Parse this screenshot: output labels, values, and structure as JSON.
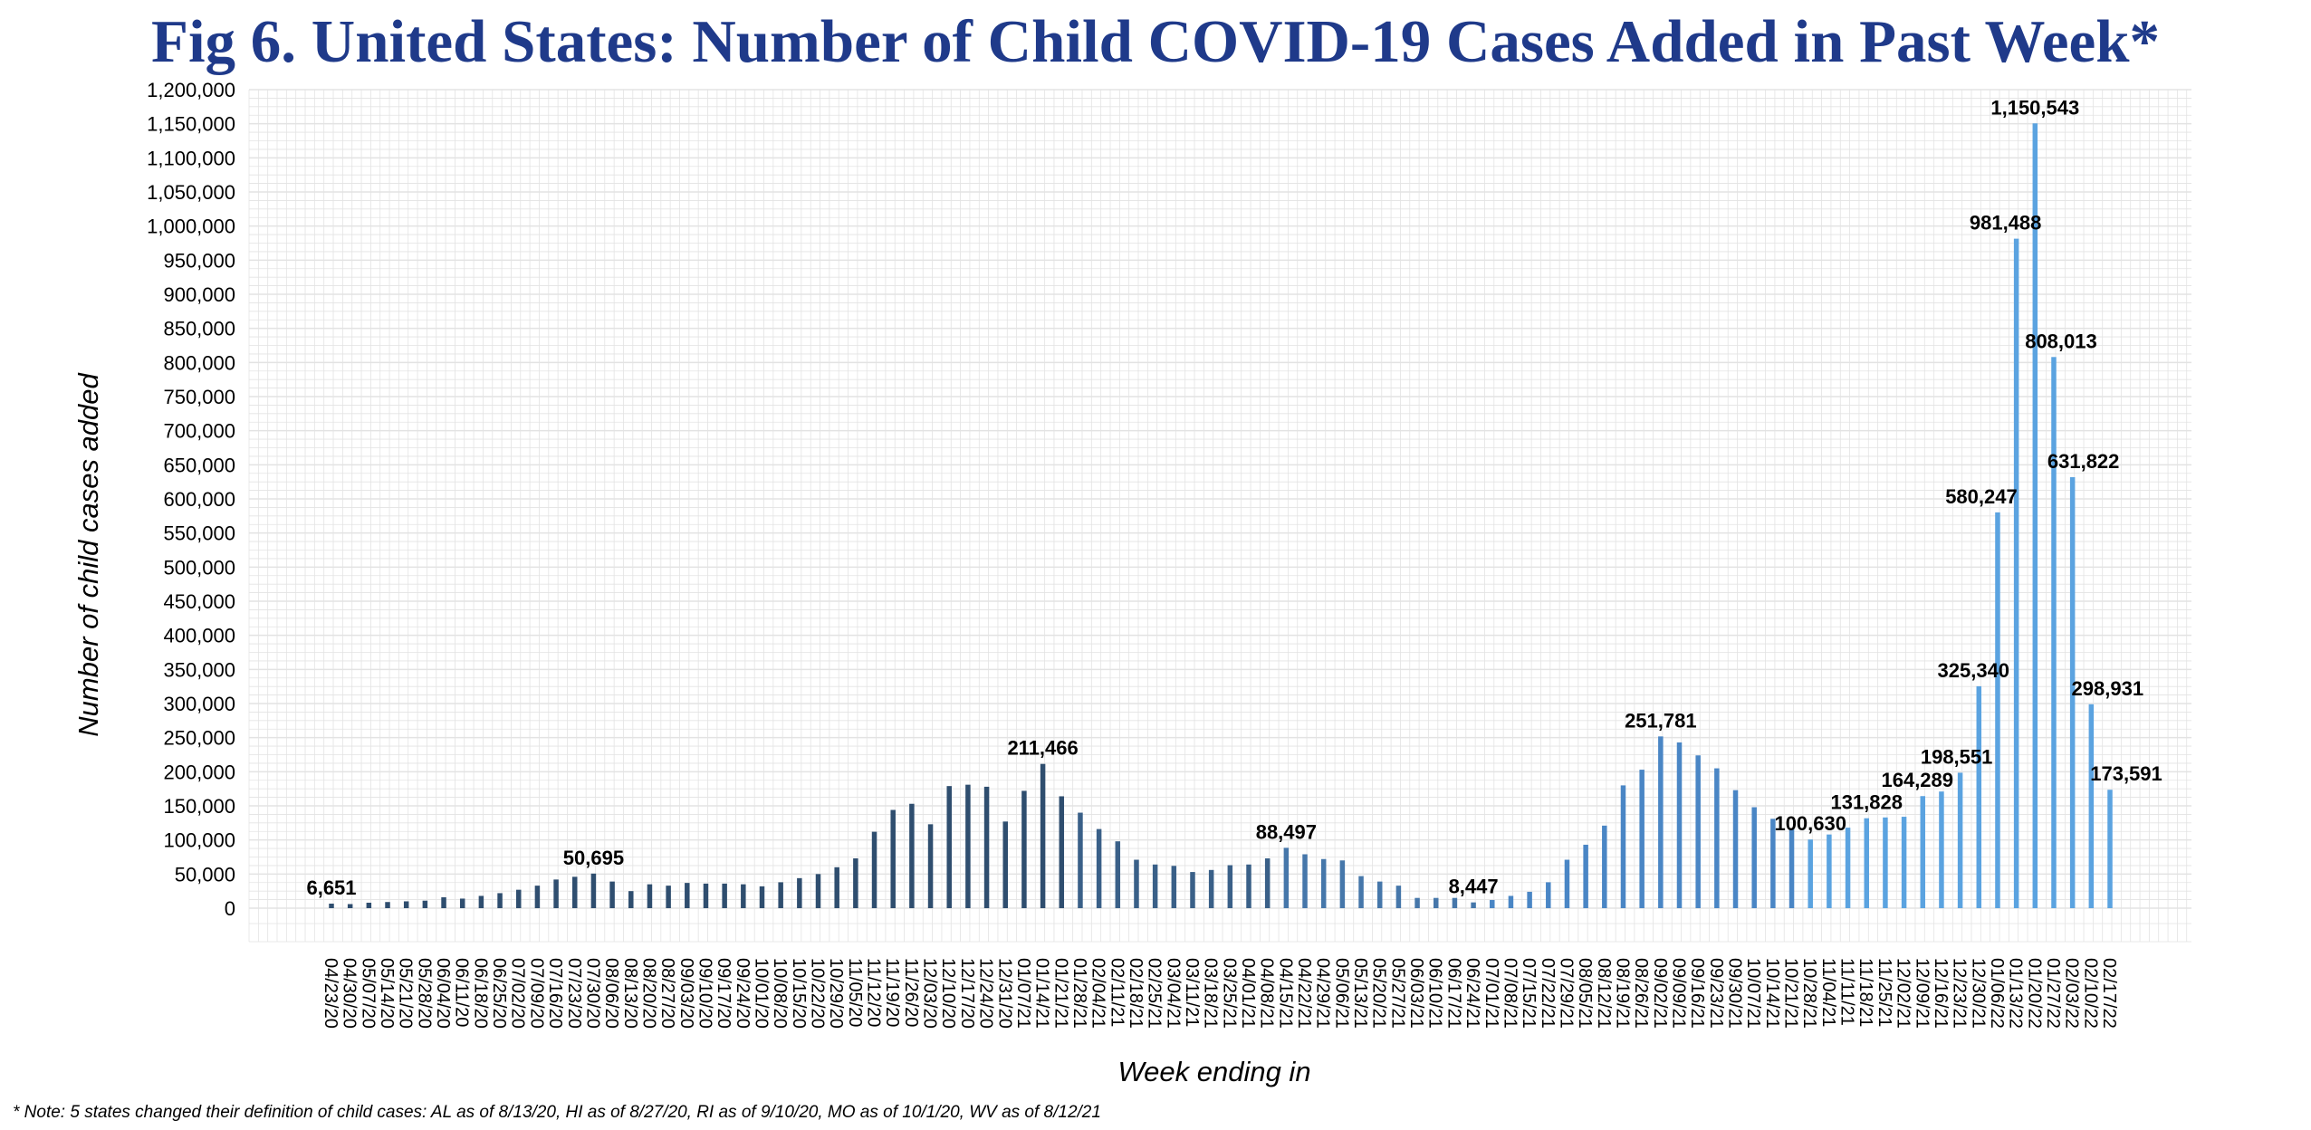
{
  "title": "Fig 6. United States: Number of Child COVID-19 Cases Added in Past Week*",
  "note": "* Note: 5 states changed their definition of child cases: AL as of 8/13/20, HI as of 8/27/20, RI as of 9/10/20, MO as of 10/1/20, WV as of 8/12/21",
  "chart_data": {
    "type": "bar",
    "xlabel": "Week ending in",
    "ylabel": "Number of child cases added",
    "ylim": [
      0,
      1200000
    ],
    "yticks": [
      0,
      50000,
      100000,
      150000,
      200000,
      250000,
      300000,
      350000,
      400000,
      450000,
      500000,
      550000,
      600000,
      650000,
      700000,
      750000,
      800000,
      850000,
      900000,
      950000,
      1000000,
      1050000,
      1100000,
      1150000,
      1200000
    ],
    "ytick_labels": [
      "0",
      "50,000",
      "100,000",
      "150,000",
      "200,000",
      "250,000",
      "300,000",
      "350,000",
      "400,000",
      "450,000",
      "500,000",
      "550,000",
      "600,000",
      "650,000",
      "700,000",
      "750,000",
      "800,000",
      "850,000",
      "900,000",
      "950,000",
      "1,000,000",
      "1,050,000",
      "1,100,000",
      "1,150,000",
      "1,200,000"
    ],
    "grid": true,
    "categories": [
      "04/23/20",
      "04/30/20",
      "05/07/20",
      "05/14/20",
      "05/21/20",
      "05/28/20",
      "06/04/20",
      "06/11/20",
      "06/18/20",
      "06/25/20",
      "07/02/20",
      "07/09/20",
      "07/16/20",
      "07/23/20",
      "07/30/20",
      "08/06/20",
      "08/13/20",
      "08/20/20",
      "08/27/20",
      "09/03/20",
      "09/10/20",
      "09/17/20",
      "09/24/20",
      "10/01/20",
      "10/08/20",
      "10/15/20",
      "10/22/20",
      "10/29/20",
      "11/05/20",
      "11/12/20",
      "11/19/20",
      "11/26/20",
      "12/03/20",
      "12/10/20",
      "12/17/20",
      "12/24/20",
      "12/31/20",
      "01/07/21",
      "01/14/21",
      "01/21/21",
      "01/28/21",
      "02/04/21",
      "02/11/21",
      "02/18/21",
      "02/25/21",
      "03/04/21",
      "03/11/21",
      "03/18/21",
      "03/25/21",
      "04/01/21",
      "04/08/21",
      "04/15/21",
      "04/22/21",
      "04/29/21",
      "05/06/21",
      "05/13/21",
      "05/20/21",
      "05/27/21",
      "06/03/21",
      "06/10/21",
      "06/17/21",
      "06/24/21",
      "07/01/21",
      "07/08/21",
      "07/15/21",
      "07/22/21",
      "07/29/21",
      "08/05/21",
      "08/12/21",
      "08/19/21",
      "08/26/21",
      "09/02/21",
      "09/09/21",
      "09/16/21",
      "09/23/21",
      "09/30/21",
      "10/07/21",
      "10/14/21",
      "10/21/21",
      "10/28/21",
      "11/04/21",
      "11/11/21",
      "11/18/21",
      "11/25/21",
      "12/02/21",
      "12/09/21",
      "12/16/21",
      "12/23/21",
      "12/30/21",
      "01/06/22",
      "01/13/22",
      "01/20/22",
      "01/27/22",
      "02/03/22",
      "02/10/22",
      "02/17/22"
    ],
    "values": [
      6651,
      6000,
      8000,
      9000,
      10000,
      11000,
      16000,
      14000,
      18000,
      22000,
      27000,
      33000,
      42000,
      46000,
      50695,
      39000,
      25000,
      35000,
      33000,
      37000,
      36000,
      36000,
      35000,
      32000,
      38000,
      44000,
      50000,
      60000,
      73000,
      112000,
      144000,
      153000,
      123000,
      179000,
      181000,
      178000,
      127000,
      172000,
      211466,
      164000,
      140000,
      116000,
      98000,
      71000,
      64000,
      62000,
      53000,
      56000,
      63000,
      64000,
      73000,
      88497,
      79000,
      72000,
      70000,
      47000,
      39000,
      33000,
      15000,
      15000,
      15000,
      8447,
      12000,
      18000,
      24000,
      38000,
      71000,
      93000,
      121000,
      180000,
      203000,
      251781,
      243000,
      224000,
      205000,
      173000,
      148000,
      131000,
      117000,
      100630,
      108000,
      118000,
      131828,
      133000,
      134000,
      164289,
      171000,
      198551,
      325340,
      580247,
      981488,
      1150543,
      808013,
      631822,
      298931,
      173591
    ],
    "data_labels": [
      {
        "index": 0,
        "text": "6,651"
      },
      {
        "index": 14,
        "text": "50,695"
      },
      {
        "index": 38,
        "text": "211,466"
      },
      {
        "index": 51,
        "text": "88,497"
      },
      {
        "index": 61,
        "text": "8,447"
      },
      {
        "index": 71,
        "text": "251,781"
      },
      {
        "index": 79,
        "text": "100,630"
      },
      {
        "index": 82,
        "text": "131,828"
      },
      {
        "index": 85,
        "text": "164,289"
      },
      {
        "index": 87,
        "text": "198,551"
      },
      {
        "index": 88,
        "text": "325,340"
      },
      {
        "index": 89,
        "text": "580,247"
      },
      {
        "index": 90,
        "text": "981,488"
      },
      {
        "index": 91,
        "text": "1,150,543"
      },
      {
        "index": 92,
        "text": "808,013"
      },
      {
        "index": 93,
        "text": "631,822"
      },
      {
        "index": 94,
        "text": "298,931"
      },
      {
        "index": 95,
        "text": "173,591"
      }
    ],
    "colors": {
      "dark": "#2f4e6f",
      "mid": "#4a86c5",
      "light": "#5ba3e0",
      "grid": "#e3e3e3",
      "title": "#1f3a8a"
    }
  }
}
